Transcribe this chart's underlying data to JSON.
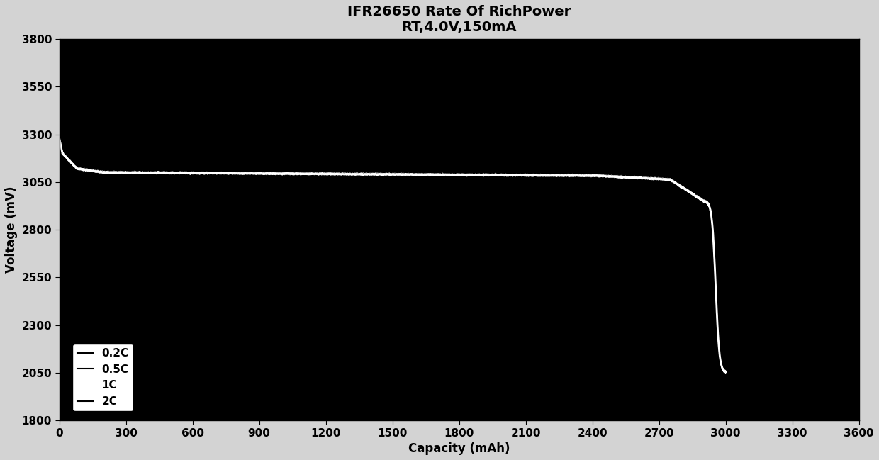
{
  "title_line1": "IFR26650 Rate Of RichPower",
  "title_line2": "RT,4.0V,150mA",
  "xlabel": "Capacity (mAh)",
  "ylabel": "Voltage (mV)",
  "xlim": [
    0,
    3600
  ],
  "ylim": [
    1800,
    3800
  ],
  "xticks": [
    0,
    300,
    600,
    900,
    1200,
    1500,
    1800,
    2100,
    2400,
    2700,
    3000,
    3300,
    3600
  ],
  "yticks": [
    1800,
    2050,
    2300,
    2550,
    2800,
    3050,
    3300,
    3550,
    3800
  ],
  "figure_bg_color": "#d3d3d3",
  "plot_bg_color": "#000000",
  "line_color": "#ffffff",
  "legend_labels": [
    "0.2C",
    "0.5C",
    "1C",
    "2C"
  ],
  "legend_bg": "#ffffff",
  "title_fontsize": 14,
  "axis_label_fontsize": 12,
  "tick_fontsize": 11
}
